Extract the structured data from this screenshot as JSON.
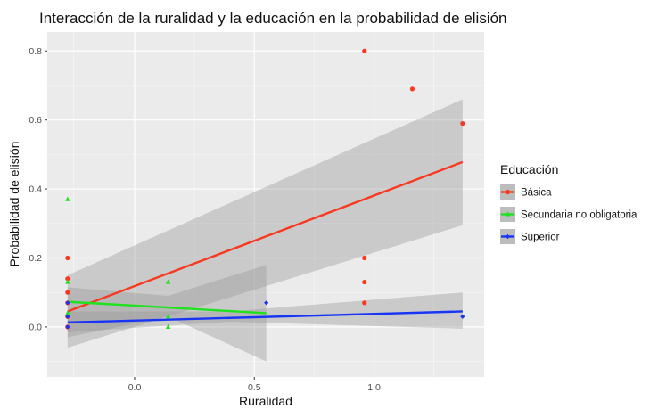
{
  "chart_data": {
    "type": "scatter",
    "title": "Interacción de la ruralidad y la educación en la probabilidad de elisión",
    "xlabel": "Ruralidad",
    "ylabel": "Probabilidad de elisión",
    "x_ticks": [
      0.0,
      0.5,
      1.0
    ],
    "x_tick_labels": [
      "0.0",
      "0.5",
      "1.0"
    ],
    "y_ticks": [
      0.0,
      0.2,
      0.4,
      0.6,
      0.8
    ],
    "y_tick_labels": [
      "0.0",
      "0.2",
      "0.4",
      "0.6",
      "0.8"
    ],
    "xlim": [
      -0.365,
      1.46
    ],
    "ylim": [
      -0.145,
      0.855
    ],
    "grid": true,
    "legend": {
      "title": "Educación",
      "position": "right",
      "entries": [
        "Básica",
        "Secundaria no obligatoria",
        "Superior"
      ]
    },
    "series": [
      {
        "name": "Básica",
        "color": "#f8391f",
        "marker": "circle",
        "points": [
          {
            "x": -0.28,
            "y": 0.2
          },
          {
            "x": -0.28,
            "y": 0.14
          },
          {
            "x": -0.28,
            "y": 0.1
          },
          {
            "x": -0.28,
            "y": 0.07
          },
          {
            "x": -0.28,
            "y": 0.03
          },
          {
            "x": -0.28,
            "y": 0.0
          },
          {
            "x": 0.96,
            "y": 0.8
          },
          {
            "x": 0.96,
            "y": 0.2
          },
          {
            "x": 0.96,
            "y": 0.13
          },
          {
            "x": 0.96,
            "y": 0.07
          },
          {
            "x": 1.16,
            "y": 0.69
          },
          {
            "x": 1.37,
            "y": 0.59
          }
        ],
        "fit": {
          "x": [
            -0.28,
            1.37
          ],
          "y": [
            0.045,
            0.478
          ]
        },
        "band": {
          "x": [
            -0.28,
            1.37
          ],
          "lower": [
            -0.06,
            0.295
          ],
          "upper": [
            0.15,
            0.66
          ]
        }
      },
      {
        "name": "Secundaria no obligatoria",
        "color": "#1fe21f",
        "marker": "triangle",
        "points": [
          {
            "x": -0.28,
            "y": 0.37
          },
          {
            "x": -0.28,
            "y": 0.13
          },
          {
            "x": -0.28,
            "y": 0.04
          },
          {
            "x": 0.14,
            "y": 0.13
          },
          {
            "x": 0.14,
            "y": 0.03
          },
          {
            "x": 0.14,
            "y": 0.0
          }
        ],
        "fit": {
          "x": [
            -0.28,
            0.55
          ],
          "y": [
            0.073,
            0.04
          ]
        },
        "band": {
          "x": [
            -0.28,
            0.14,
            0.55
          ],
          "lower": [
            -0.03,
            0.03,
            -0.1
          ],
          "upper": [
            0.115,
            0.09,
            0.18
          ]
        }
      },
      {
        "name": "Superior",
        "color": "#1835f5",
        "marker": "diamond",
        "points": [
          {
            "x": -0.28,
            "y": 0.07
          },
          {
            "x": -0.28,
            "y": 0.03
          },
          {
            "x": -0.28,
            "y": 0.0
          },
          {
            "x": 0.55,
            "y": 0.07
          },
          {
            "x": 1.37,
            "y": 0.03
          }
        ],
        "fit": {
          "x": [
            -0.28,
            1.37
          ],
          "y": [
            0.013,
            0.045
          ]
        },
        "band": {
          "x": [
            -0.28,
            0.4,
            1.37
          ],
          "lower": [
            -0.015,
            0.015,
            -0.005
          ],
          "upper": [
            0.045,
            0.045,
            0.1
          ]
        }
      }
    ]
  }
}
